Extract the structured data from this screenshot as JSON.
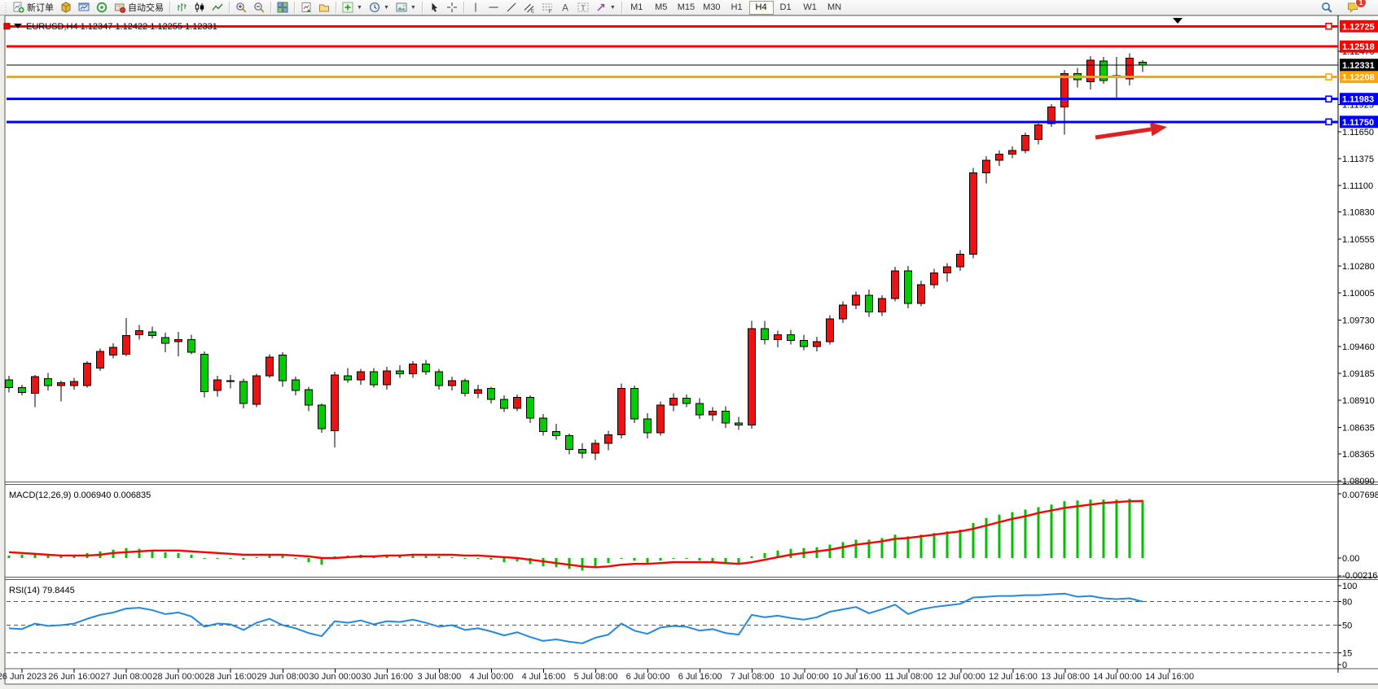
{
  "toolbar": {
    "groups": [
      {
        "items": [
          {
            "name": "new-order-button",
            "icon": "new-order",
            "label": "新订单"
          },
          {
            "name": "market-button",
            "icon": "market"
          },
          {
            "name": "data-window-button",
            "icon": "chart-window"
          },
          {
            "name": "strategy-tester-button",
            "icon": "strategy-tester"
          },
          {
            "name": "autotrading-button",
            "icon": "autotrading",
            "label": "自动交易"
          }
        ]
      },
      {
        "items": [
          {
            "name": "bar-chart-button",
            "icon": "bar-chart"
          },
          {
            "name": "candle-chart-button",
            "icon": "candle-chart"
          },
          {
            "name": "line-chart-button",
            "icon": "line-chart"
          }
        ]
      },
      {
        "items": [
          {
            "name": "zoom-in-button",
            "icon": "zoom-in"
          },
          {
            "name": "zoom-out-button",
            "icon": "zoom-out"
          }
        ]
      },
      {
        "items": [
          {
            "name": "tile-windows-button",
            "icon": "tile-windows"
          }
        ]
      },
      {
        "items": [
          {
            "name": "new-chart-button",
            "icon": "new-chart"
          },
          {
            "name": "profiles-button",
            "icon": "profiles"
          }
        ]
      },
      {
        "items": [
          {
            "name": "indicators-button",
            "icon": "indicators",
            "dropdown": true
          },
          {
            "name": "periods-button",
            "icon": "periods",
            "dropdown": true
          },
          {
            "name": "templates-button",
            "icon": "templates",
            "dropdown": true
          }
        ]
      },
      {
        "items": [
          {
            "name": "cursor-button",
            "icon": "cursor"
          },
          {
            "name": "crosshair-button",
            "icon": "crosshair"
          }
        ]
      },
      {
        "items": [
          {
            "name": "vertical-line-button",
            "icon": "vline"
          },
          {
            "name": "horizontal-line-button",
            "icon": "hline"
          },
          {
            "name": "trendline-button",
            "icon": "trendline"
          },
          {
            "name": "equidistant-channel-button",
            "icon": "channel"
          },
          {
            "name": "fibonacci-button",
            "icon": "fibo"
          },
          {
            "name": "text-button",
            "icon": "text"
          },
          {
            "name": "text-label-button",
            "icon": "text-label"
          },
          {
            "name": "arrows-button",
            "icon": "shapes",
            "dropdown": true
          }
        ]
      }
    ],
    "timeframes": {
      "items": [
        "M1",
        "M5",
        "M15",
        "M30",
        "H1",
        "H4",
        "D1",
        "W1",
        "MN"
      ],
      "active": "H4"
    },
    "notification_badge": "1"
  },
  "chart": {
    "title": "EURUSD,H4 1.12347 1.12422 1.12255 1.12331",
    "macd_label": "MACD(12,26,9) 0.006940 0.006835",
    "rsi_label": "RSI(14) 79.8445"
  },
  "chart_data": {
    "type": "candlestick",
    "symbol": "EURUSD",
    "timeframe": "H4",
    "ohlc_current": {
      "open": 1.12347,
      "high": 1.12422,
      "low": 1.12255,
      "close": 1.12331
    },
    "ylim": [
      1.0795,
      1.1285
    ],
    "colors": {
      "up": "#ee1111",
      "down": "#00cc00",
      "wick": "#000000",
      "macd_hist": "#00c000",
      "macd_signal": "#ff0000",
      "rsi_line": "#2288e0",
      "arrow": "#dd2222"
    },
    "candles": [
      [
        1.0912,
        1.0916,
        1.0899,
        1.0904
      ],
      [
        1.0904,
        1.0907,
        1.0896,
        1.0899
      ],
      [
        1.0898,
        1.0917,
        1.0884,
        1.0915
      ],
      [
        1.0913,
        1.0919,
        1.0901,
        1.0906
      ],
      [
        1.0906,
        1.0911,
        1.089,
        1.0909
      ],
      [
        1.0906,
        1.0914,
        1.0902,
        1.091
      ],
      [
        1.0906,
        1.0931,
        1.0904,
        1.0929
      ],
      [
        1.0924,
        1.0944,
        1.0921,
        1.0941
      ],
      [
        1.0937,
        1.0949,
        1.0934,
        1.0945
      ],
      [
        1.0938,
        1.0975,
        1.0936,
        1.0957
      ],
      [
        1.0958,
        1.0968,
        1.0953,
        1.0962
      ],
      [
        1.0961,
        1.0966,
        1.0954,
        1.0957
      ],
      [
        1.0955,
        1.096,
        1.094,
        1.0949
      ],
      [
        1.0951,
        1.0961,
        1.0936,
        1.0953
      ],
      [
        1.0953,
        1.0958,
        1.0938,
        1.094
      ],
      [
        1.0938,
        1.0941,
        1.0894,
        1.09
      ],
      [
        1.0901,
        1.0916,
        1.0895,
        1.0912
      ],
      [
        1.0911,
        1.0917,
        1.0903,
        1.091
      ],
      [
        1.091,
        1.0913,
        1.0883,
        1.0888
      ],
      [
        1.0887,
        1.0918,
        1.0884,
        1.0916
      ],
      [
        1.0916,
        1.0938,
        1.0914,
        1.0935
      ],
      [
        1.0937,
        1.094,
        1.0905,
        1.0911
      ],
      [
        1.0912,
        1.0915,
        1.0896,
        1.0901
      ],
      [
        1.0902,
        1.0905,
        1.088,
        1.0886
      ],
      [
        1.0886,
        1.0888,
        1.0858,
        1.0862
      ],
      [
        1.086,
        1.092,
        1.0843,
        1.0917
      ],
      [
        1.0916,
        1.0924,
        1.0909,
        1.0912
      ],
      [
        1.0912,
        1.0923,
        1.0907,
        1.092
      ],
      [
        1.092,
        1.0924,
        1.0904,
        1.0907
      ],
      [
        1.0907,
        1.0925,
        1.0902,
        1.0921
      ],
      [
        1.0921,
        1.0927,
        1.0914,
        1.0918
      ],
      [
        1.0918,
        1.0931,
        1.0914,
        1.0928
      ],
      [
        1.0928,
        1.0932,
        1.0917,
        1.092
      ],
      [
        1.092,
        1.0923,
        1.0902,
        1.0906
      ],
      [
        1.0906,
        1.0915,
        1.0901,
        1.0911
      ],
      [
        1.0911,
        1.0913,
        1.0895,
        1.0898
      ],
      [
        1.0898,
        1.0907,
        1.0893,
        1.0902
      ],
      [
        1.0903,
        1.0905,
        1.0888,
        1.0892
      ],
      [
        1.0892,
        1.0896,
        1.0879,
        1.0883
      ],
      [
        1.0883,
        1.0897,
        1.088,
        1.0894
      ],
      [
        1.0894,
        1.0896,
        1.0868,
        1.0873
      ],
      [
        1.0873,
        1.0877,
        1.0855,
        1.0859
      ],
      [
        1.0859,
        1.0867,
        1.0851,
        1.0855
      ],
      [
        1.0855,
        1.0857,
        1.0836,
        1.0841
      ],
      [
        1.0841,
        1.0847,
        1.0832,
        1.0837
      ],
      [
        1.0837,
        1.0851,
        1.083,
        1.0847
      ],
      [
        1.0847,
        1.086,
        1.084,
        1.0856
      ],
      [
        1.0856,
        1.0908,
        1.0852,
        1.0903
      ],
      [
        1.0903,
        1.0906,
        1.0868,
        1.0872
      ],
      [
        1.0872,
        1.0878,
        1.0852,
        1.0858
      ],
      [
        1.0858,
        1.089,
        1.0855,
        1.0886
      ],
      [
        1.0886,
        1.0898,
        1.088,
        1.0893
      ],
      [
        1.0893,
        1.0897,
        1.0884,
        1.0888
      ],
      [
        1.0888,
        1.0893,
        1.0872,
        1.0876
      ],
      [
        1.0876,
        1.0884,
        1.087,
        1.088
      ],
      [
        1.088,
        1.0885,
        1.0863,
        1.0868
      ],
      [
        1.0868,
        1.0874,
        1.0861,
        1.0866
      ],
      [
        1.0866,
        1.0972,
        1.0862,
        1.0964
      ],
      [
        1.0964,
        1.0972,
        1.0948,
        1.0953
      ],
      [
        1.0953,
        1.0962,
        1.0945,
        1.0958
      ],
      [
        1.0958,
        1.0963,
        1.0948,
        1.0952
      ],
      [
        1.0952,
        1.0958,
        1.0942,
        1.0946
      ],
      [
        1.0946,
        1.0956,
        1.0941,
        1.0951
      ],
      [
        1.0951,
        1.0978,
        1.0948,
        1.0974
      ],
      [
        1.0974,
        1.0992,
        1.097,
        1.0988
      ],
      [
        1.0988,
        1.1002,
        1.0984,
        1.0998
      ],
      [
        1.0998,
        1.1004,
        1.0976,
        1.0981
      ],
      [
        1.0981,
        1.0998,
        1.0977,
        1.0995
      ],
      [
        1.0995,
        1.1027,
        1.0992,
        1.1023
      ],
      [
        1.1023,
        1.1028,
        1.0985,
        1.099
      ],
      [
        1.099,
        1.1013,
        1.0987,
        1.1009
      ],
      [
        1.1009,
        1.1025,
        1.1005,
        1.1021
      ],
      [
        1.1021,
        1.1031,
        1.1012,
        1.1027
      ],
      [
        1.1027,
        1.1044,
        1.1023,
        1.104
      ],
      [
        1.104,
        1.1128,
        1.1036,
        1.1123
      ],
      [
        1.1123,
        1.114,
        1.1112,
        1.1136
      ],
      [
        1.1136,
        1.1146,
        1.113,
        1.1142
      ],
      [
        1.1142,
        1.115,
        1.1138,
        1.1146
      ],
      [
        1.1146,
        1.1164,
        1.1143,
        1.1161
      ],
      [
        1.1157,
        1.1176,
        1.1152,
        1.1172
      ],
      [
        1.1173,
        1.1193,
        1.117,
        1.119
      ],
      [
        1.119,
        1.1228,
        1.1162,
        1.1224
      ],
      [
        1.1224,
        1.123,
        1.121,
        1.1218
      ],
      [
        1.1216,
        1.1242,
        1.1208,
        1.1238
      ],
      [
        1.1237,
        1.1241,
        1.1214,
        1.1217
      ],
      [
        1.122,
        1.1241,
        1.1199,
        1.1222
      ],
      [
        1.1219,
        1.1245,
        1.1212,
        1.124
      ],
      [
        1.1236,
        1.1238,
        1.1226,
        1.12331
      ]
    ],
    "price_axis_ticks": [
      1.1247,
      1.11925,
      1.1165,
      1.11375,
      1.111,
      1.1083,
      1.10555,
      1.1028,
      1.10005,
      1.0973,
      1.0946,
      1.09185,
      1.0891,
      1.08635,
      1.08365,
      1.0809
    ],
    "hlines": [
      {
        "price": 1.12725,
        "label": "1.12725",
        "color": "#ff0000",
        "width": 3,
        "handle_right": true,
        "handle_left": true
      },
      {
        "price": 1.12518,
        "label": "1.12518",
        "color": "#ff0000",
        "width": 3,
        "handle_right": false,
        "handle_left": false
      },
      {
        "price": 1.12208,
        "label": "1.12208",
        "color": "#ffa500",
        "width": 3,
        "handle_right": true,
        "handle_left": false
      },
      {
        "price": 1.11983,
        "label": "1.11983",
        "color": "#0000ff",
        "width": 3,
        "handle_right": true,
        "handle_left": false
      },
      {
        "price": 1.1175,
        "label": "1.11750",
        "color": "#0000ff",
        "width": 3,
        "handle_right": true,
        "handle_left": false
      }
    ],
    "current_price": {
      "value": 1.12331,
      "label": "1.12331",
      "color": "#000000"
    },
    "date_labels": [
      "26 Jun 2023",
      "26 Jun 16:00",
      "27 Jun 08:00",
      "28 Jun 00:00",
      "28 Jun 16:00",
      "29 Jun 08:00",
      "30 Jun 00:00",
      "30 Jun 16:00",
      "3 Jul 08:00",
      "4 Jul 00:00",
      "4 Jul 16:00",
      "5 Jul 08:00",
      "6 Jul 00:00",
      "6 Jul 16:00",
      "7 Jul 08:00",
      "10 Jul 00:00",
      "10 Jul 16:00",
      "11 Jul 08:00",
      "12 Jul 00:00",
      "12 Jul 16:00",
      "13 Jul 08:00",
      "14 Jul 00:00",
      "14 Jul 16:00"
    ],
    "macd": {
      "params": "12,26,9",
      "value": 0.00694,
      "signal_value": 0.006835,
      "axis_labels": [
        "0.007698",
        "0.00",
        "-0.002168"
      ],
      "axis_values": [
        0.007698,
        0,
        -0.002168
      ],
      "unit": 0.0001,
      "hist": [
        3,
        4,
        5,
        4,
        3,
        4,
        6,
        8,
        10,
        12,
        11,
        9,
        7,
        6,
        4,
        0,
        -1,
        0,
        -2,
        1,
        4,
        3,
        -1,
        -5,
        -8,
        2,
        3,
        4,
        3,
        4,
        4,
        5,
        4,
        2,
        1,
        -1,
        0,
        -2,
        -5,
        -4,
        -7,
        -10,
        -11,
        -13,
        -15,
        -12,
        -6,
        0,
        -3,
        -6,
        -3,
        -1,
        -1,
        -3,
        -4,
        -6,
        -7,
        2,
        6,
        9,
        11,
        12,
        13,
        16,
        19,
        22,
        22,
        24,
        28,
        26,
        28,
        30,
        32,
        34,
        42,
        48,
        52,
        55,
        58,
        61,
        64,
        68,
        69,
        70,
        70,
        70,
        71,
        69.4
      ],
      "signal_series": [
        7,
        6,
        5,
        4,
        3,
        3,
        3,
        4,
        6,
        7,
        8,
        9,
        9,
        9,
        8,
        7,
        6,
        5,
        4,
        4,
        4,
        4,
        3,
        2,
        0,
        0,
        1,
        2,
        2,
        3,
        3,
        4,
        4,
        4,
        4,
        3,
        3,
        2,
        1,
        0,
        -2,
        -4,
        -6,
        -8,
        -10,
        -11,
        -10,
        -8,
        -7,
        -7,
        -6,
        -5,
        -5,
        -5,
        -5,
        -6,
        -7,
        -5,
        -2,
        1,
        4,
        6,
        8,
        10,
        13,
        16,
        18,
        20,
        23,
        24,
        26,
        28,
        30,
        32,
        35,
        39,
        43,
        47,
        50,
        54,
        57,
        60,
        62,
        64,
        66,
        67,
        68,
        68.35
      ]
    },
    "rsi": {
      "period": 14,
      "value": 79.8445,
      "levels": [
        80,
        50,
        15
      ],
      "axis_labels": [
        "100",
        "80",
        "50",
        "15",
        "0"
      ],
      "axis_values": [
        100,
        80,
        50,
        15,
        0
      ],
      "series": [
        46,
        45,
        52,
        49,
        50,
        52,
        58,
        63,
        66,
        71,
        72,
        69,
        64,
        66,
        61,
        48,
        52,
        51,
        44,
        53,
        58,
        50,
        46,
        40,
        36,
        55,
        53,
        56,
        51,
        55,
        54,
        57,
        53,
        48,
        50,
        44,
        46,
        42,
        37,
        41,
        35,
        30,
        32,
        29,
        27,
        34,
        38,
        52,
        43,
        39,
        47,
        49,
        48,
        43,
        45,
        40,
        38,
        63,
        60,
        62,
        59,
        57,
        60,
        67,
        70,
        73,
        65,
        70,
        76,
        64,
        70,
        73,
        75,
        77,
        85,
        86,
        87,
        87,
        88,
        88,
        89,
        90,
        86,
        87,
        84,
        83,
        84,
        79.84
      ]
    },
    "arrow_annotation": {
      "color": "#dd2222",
      "from": [
        1345,
        169
      ],
      "to": [
        1433,
        156
      ]
    }
  }
}
